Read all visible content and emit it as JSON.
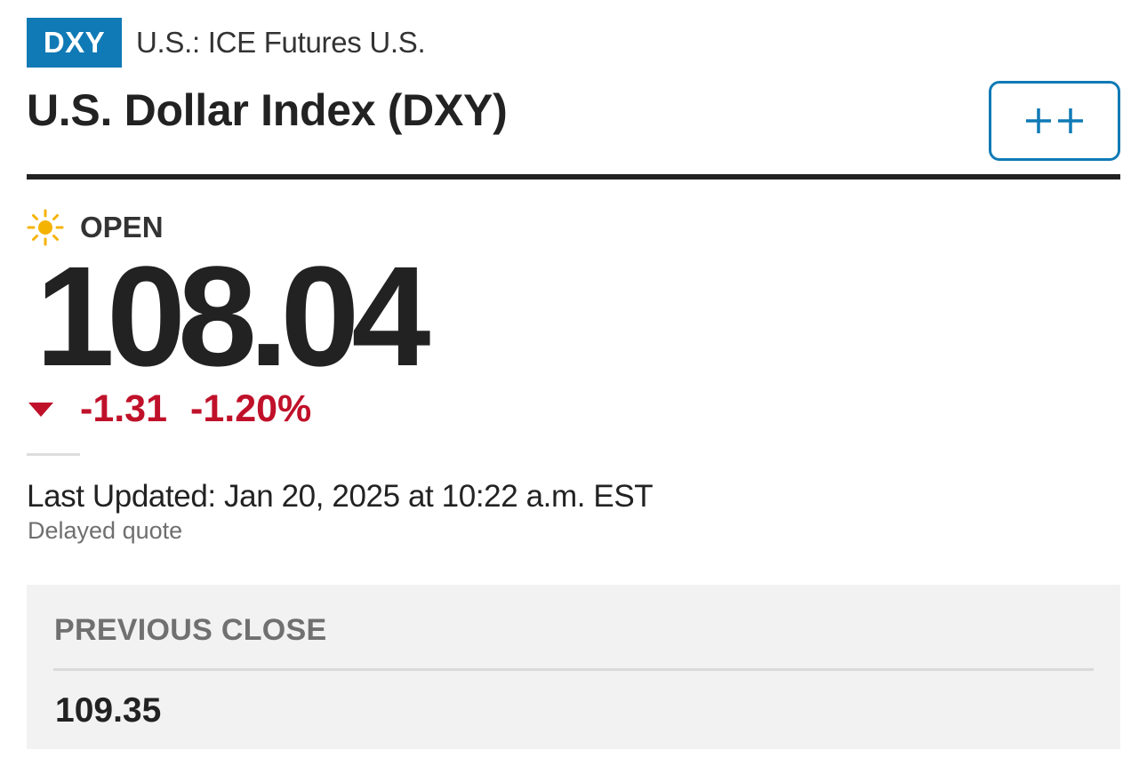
{
  "header": {
    "ticker": "DXY",
    "exchange": "U.S.: ICE Futures U.S.",
    "title": "U.S. Dollar Index (DXY)",
    "watch_button_icon": "plus-plus-icon"
  },
  "market_status": {
    "icon": "sun-icon",
    "label": "OPEN"
  },
  "quote": {
    "price": "108.04",
    "direction": "down",
    "change": "-1.31",
    "change_percent": "-1.20%",
    "last_updated": "Last Updated: Jan 20, 2025 at 10:22 a.m. EST",
    "delay_note": "Delayed quote"
  },
  "key_data": {
    "previous_close_label": "PREVIOUS CLOSE",
    "previous_close_value": "109.35"
  },
  "colors": {
    "brand_blue": "#0f7ab5",
    "negative_red": "#c0112a",
    "sun_yellow": "#f5b301",
    "text_dark": "#222222",
    "muted_gray": "#707070",
    "panel_bg": "#f2f2f2"
  }
}
